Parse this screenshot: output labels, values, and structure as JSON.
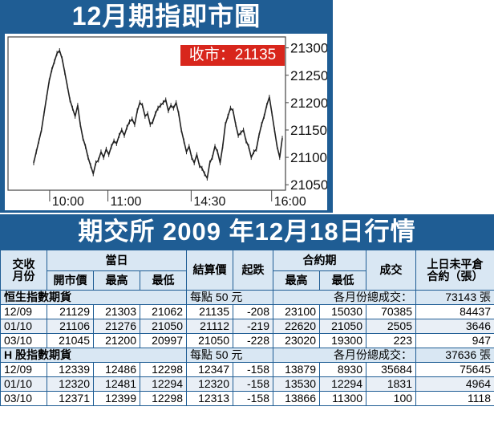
{
  "chart": {
    "title": "12月期指即市圖",
    "close_label": "收市：21135"
  },
  "chart_data": {
    "type": "line",
    "title": "12月期指即市圖",
    "y_ticks": [
      21050,
      21100,
      21150,
      21200,
      21250,
      21300
    ],
    "ylim": [
      21040,
      21320
    ],
    "x_ticks": [
      "10:00",
      "11:00",
      "14:30",
      "16:00"
    ],
    "x_tick_positions": [
      0.15,
      0.36,
      0.66,
      0.95
    ],
    "series": [
      {
        "values": [
          21090,
          21110,
          21130,
          21150,
          21180,
          21210,
          21240,
          21260,
          21275,
          21290,
          21295,
          21280,
          21255,
          21230,
          21205,
          21190,
          21175,
          21195,
          21160,
          21135,
          21120,
          21100,
          21085,
          21070,
          21090,
          21095,
          21110,
          21100,
          21115,
          21105,
          21120,
          21130,
          21125,
          21140,
          21150,
          21140,
          21155,
          21165,
          21170,
          21160,
          21185,
          21200,
          21195,
          21175,
          21180,
          21160,
          21165,
          21180,
          21190,
          21195,
          21200,
          21205,
          21185,
          21195,
          21190,
          21200,
          21180,
          21150,
          21130,
          21110,
          21120,
          21100,
          21090,
          21105,
          21085,
          21080,
          21070,
          21062,
          21090,
          21100,
          21120,
          21110,
          21090,
          21120,
          21160,
          21175,
          21190,
          21185,
          21160,
          21140,
          21145,
          21150,
          21130,
          21120,
          21100,
          21110,
          21115,
          21140,
          21160,
          21175,
          21195,
          21210,
          21180,
          21150,
          21120,
          21100,
          21135
        ]
      }
    ]
  },
  "section": {
    "title": "期交所 2009 年12月18日行情"
  },
  "table": {
    "headers": {
      "month": "交收\n月份",
      "session": "當日",
      "open": "開市價",
      "high": "最高",
      "low": "最低",
      "settle": "結算價",
      "change": "起跌",
      "contract": "合約期",
      "c_high": "最高",
      "c_low": "最低",
      "volume": "成交",
      "oi": "上日未平倉\n合約（張）"
    },
    "groups": [
      {
        "name": "恒生指數期貨",
        "point_note": "每點 50 元",
        "total_label": "各月份總成交：",
        "total_value": "73143 張",
        "rows": [
          [
            "12/09",
            "21129",
            "21303",
            "21062",
            "21135",
            "-208",
            "23100",
            "15030",
            "70385",
            "84437"
          ],
          [
            "01/10",
            "21106",
            "21276",
            "21050",
            "21112",
            "-219",
            "22620",
            "21050",
            "2505",
            "3646"
          ],
          [
            "03/10",
            "21045",
            "21200",
            "20997",
            "21050",
            "-228",
            "23020",
            "19300",
            "223",
            "947"
          ]
        ]
      },
      {
        "name": "H 股指數期貨",
        "point_note": "每點 50 元",
        "total_label": "各月份總成交：",
        "total_value": "37636 張",
        "rows": [
          [
            "12/09",
            "12339",
            "12486",
            "12298",
            "12347",
            "-158",
            "13879",
            "8930",
            "35684",
            "75645"
          ],
          [
            "01/10",
            "12320",
            "12481",
            "12294",
            "12320",
            "-158",
            "13530",
            "12294",
            "1831",
            "4964"
          ],
          [
            "03/10",
            "12371",
            "12399",
            "12298",
            "12313",
            "-158",
            "13866",
            "11300",
            "100",
            "1118"
          ]
        ]
      }
    ]
  }
}
